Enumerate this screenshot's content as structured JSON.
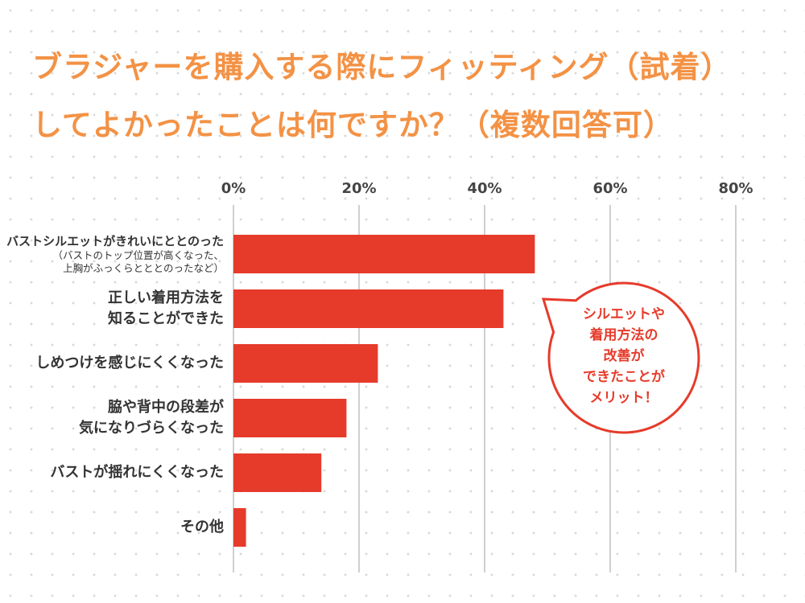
{
  "chart_data": {
    "type": "barh",
    "title": "ブラジャーを購入する際にフィッティング（試着）\nしてよかったことは何ですか？（複数回答可）",
    "categories": [
      "バストシルエットがきれいにととのった",
      "正しい着用方法を\n知ることができた",
      "しめつけを感じにくくなった",
      "脇や背中の段差が\n気になりづらくなった",
      "バストが揺れにくくなった",
      "その他"
    ],
    "note": "（バストのトップ位置が高くなった、\n上胸がふっくらとととのったなど）",
    "values": [
      48,
      43,
      23,
      18,
      14,
      2
    ],
    "color": "#e63b2b",
    "xlim": [
      0,
      80
    ],
    "xticks": [
      {
        "value": 0,
        "label": "0%"
      },
      {
        "value": 20,
        "label": "20%"
      },
      {
        "value": 40,
        "label": "40%"
      },
      {
        "value": 60,
        "label": "60%"
      },
      {
        "value": 80,
        "label": "80%"
      }
    ],
    "grid": true,
    "callout": "シルエットや\n着用方法の\n改善が\nできたことが\nメリット！"
  }
}
